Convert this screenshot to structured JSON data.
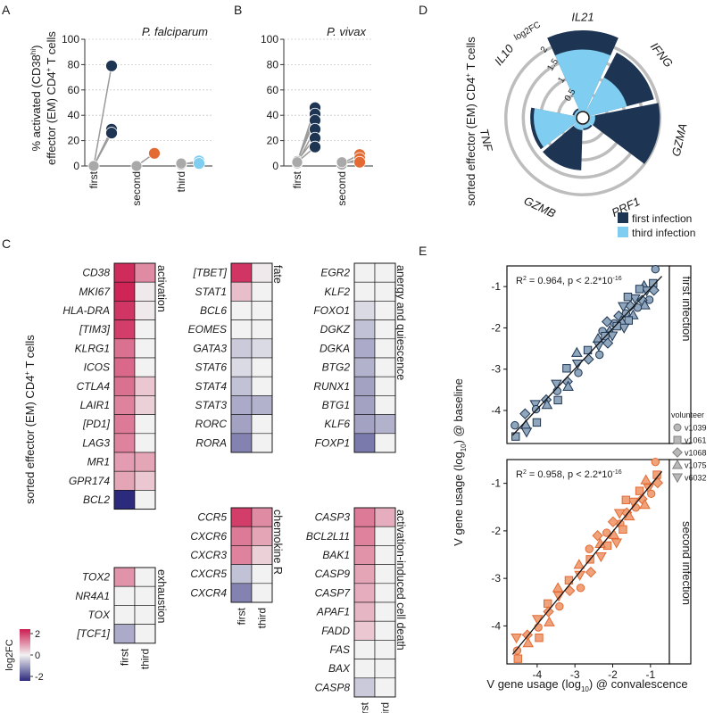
{
  "colors": {
    "navy": "#1d3553",
    "orange": "#e36a33",
    "lightblue": "#7fcdf0",
    "gray": "#a9a9a9",
    "ptFirst": "#8fa6bc",
    "ptSecond": "#f0a27b",
    "heat_pos": "#cc1b4f",
    "heat_neg": "#2c2a7d",
    "heat_mid": "#f2f2f2"
  },
  "panel_labels": {
    "a": "A",
    "b": "B",
    "c": "C",
    "d": "D",
    "e": "E"
  },
  "panelA": {
    "title": "P. falciparum",
    "ylabel_main": "% activated (CD38",
    "ylabel_sup": "hi",
    "ylabel_end": ")",
    "ylabel2_main": "effector (EM) CD4",
    "ylabel2_sup": "+",
    "ylabel2_end": " T cells",
    "yticks": [
      "0",
      "20",
      "40",
      "60",
      "80",
      "100"
    ],
    "xticks": [
      "first",
      "second",
      "third"
    ]
  },
  "panelB": {
    "title": "P. vivax",
    "yticks": [
      "0",
      "20",
      "40",
      "60",
      "80",
      "100"
    ],
    "xticks": [
      "first",
      "second"
    ]
  },
  "panelC": {
    "ylabel_main": "sorted effector (EM) CD4",
    "ylabel_sup": "+",
    "ylabel_end": " T cells",
    "col_labels": [
      "first",
      "third"
    ],
    "legend_title": "log2FC",
    "legend_ticks": [
      "2",
      "0",
      "-2"
    ],
    "groups": {
      "activation": {
        "title": "activation",
        "genes": [
          "CD38",
          "MKI67",
          "HLA-DRA",
          "[TIM3]",
          "KLRG1",
          "ICOS",
          "CTLA4",
          "LAIR1",
          "[PD1]",
          "LAG3",
          "MR1",
          "GPR174",
          "BCL2"
        ]
      },
      "exhaustion": {
        "title": "exhaustion",
        "genes": [
          "TOX2",
          "NR4A1",
          "TOX",
          "[TCF1]"
        ]
      },
      "fate": {
        "title": "fate",
        "genes": [
          "[TBET]",
          "STAT1",
          "BCL6",
          "EOMES",
          "GATA3",
          "STAT6",
          "STAT4",
          "STAT3",
          "RORC",
          "RORA"
        ]
      },
      "chemokine": {
        "title": "chemokine R",
        "genes": [
          "CCR5",
          "CXCR6",
          "CXCR3",
          "CXCR5",
          "CXCR4"
        ]
      },
      "anergy": {
        "title": "anergy and quiescence",
        "genes": [
          "EGR2",
          "KLF2",
          "FOXO1",
          "DGKZ",
          "DGKA",
          "BTG2",
          "RUNX1",
          "BTG1",
          "KLF6",
          "FOXP1"
        ]
      },
      "death": {
        "title": "activation-induced cell death",
        "genes": [
          "CASP3",
          "BCL2L11",
          "BAK1",
          "CASP9",
          "CASP7",
          "APAF1",
          "FADD",
          "FAS",
          "BAX",
          "CASP8"
        ]
      }
    }
  },
  "panelD": {
    "ylabel_main": "sorted effector (EM) CD4",
    "ylabel_sup": "+",
    "ylabel_end": " T cells",
    "axis_label": "log2FC",
    "ring_ticks": [
      "0.5",
      "1",
      "1.5",
      "2"
    ],
    "genes": [
      "IL21",
      "IFNG",
      "GZMA",
      "PRF1",
      "GZMB",
      "TNF",
      "IL10"
    ],
    "legend": [
      "first infection",
      "third infection"
    ]
  },
  "panelE": {
    "ylabel_main": "V gene usage (log",
    "ylabel_sub": "10",
    "ylabel_end": ") @ baseline",
    "xlabel_main": "V gene usage (log",
    "xlabel_sub": "10",
    "xlabel_end": ") @ convalescence",
    "top_stat_a": "R",
    "top_stat_sup": "2",
    "top_stat_b": " = 0.964, p < 2.2*10",
    "top_stat_exp": "-16",
    "bot_stat_a": "R",
    "bot_stat_sup": "2",
    "bot_stat_b": " = 0.958, p < 2.2*10",
    "bot_stat_exp": "-16",
    "top_strip": "first infection",
    "bot_strip": "second infection",
    "yticks": [
      "-1",
      "-2",
      "-3",
      "-4"
    ],
    "xticks": [
      "-4",
      "-3",
      "-2",
      "-1"
    ],
    "legend_title": "volunteer",
    "volunteers": [
      "v1039",
      "v1061",
      "v1068",
      "v1075",
      "v6032"
    ]
  },
  "chart_data": [
    {
      "type": "scatter",
      "title": "P. falciparum",
      "xlabel": "",
      "ylabel": "% activated (CD38hi) effector (EM) CD4+ T cells",
      "ylim": [
        0,
        100
      ],
      "categories": [
        "first",
        "second",
        "third"
      ],
      "pairs": [
        {
          "group": "first",
          "baseline": 0,
          "infected": 79
        },
        {
          "group": "first",
          "baseline": 0,
          "infected": 29
        },
        {
          "group": "first",
          "baseline": 0,
          "infected": 26
        },
        {
          "group": "second",
          "baseline": 0,
          "infected": 10
        },
        {
          "group": "third",
          "baseline": 1,
          "infected": 4
        },
        {
          "group": "third",
          "baseline": 2,
          "infected": 2
        }
      ]
    },
    {
      "type": "scatter",
      "title": "P. vivax",
      "ylim": [
        0,
        100
      ],
      "categories": [
        "first",
        "second"
      ],
      "pairs": [
        {
          "group": "first",
          "baseline": 3,
          "infected": 46
        },
        {
          "group": "first",
          "baseline": 3,
          "infected": 41
        },
        {
          "group": "first",
          "baseline": 4,
          "infected": 36
        },
        {
          "group": "first",
          "baseline": 2,
          "infected": 29
        },
        {
          "group": "first",
          "baseline": 4,
          "infected": 22
        },
        {
          "group": "first",
          "baseline": 3,
          "infected": 15
        },
        {
          "group": "second",
          "baseline": 2,
          "infected": 9
        },
        {
          "group": "second",
          "baseline": 1,
          "infected": 6
        },
        {
          "group": "second",
          "baseline": 3,
          "infected": 3
        }
      ]
    },
    {
      "type": "heatmap",
      "title": "log2FC",
      "columns": [
        "first",
        "third"
      ],
      "range": [
        -2.5,
        2.5
      ],
      "values": {
        "CD38": [
          2.3,
          1.2
        ],
        "MKI67": [
          2.4,
          0.1
        ],
        "HLA-DRA": [
          2.2,
          0.1
        ],
        "[TIM3]": [
          2.1,
          0.0
        ],
        "KLRG1": [
          1.5,
          0.0
        ],
        "ICOS": [
          1.6,
          0.0
        ],
        "CTLA4": [
          1.5,
          0.5
        ],
        "LAIR1": [
          1.3,
          0.4
        ],
        "[PD1]": [
          1.4,
          0.0
        ],
        "LAG3": [
          1.3,
          0.0
        ],
        "MR1": [
          1.0,
          0.9
        ],
        "GPR174": [
          0.9,
          0.5
        ],
        "BCL2": [
          -2.5,
          0.0
        ],
        "TOX2": [
          1.1,
          0.0
        ],
        "NR4A1": [
          0.0,
          0.0
        ],
        "TOX": [
          0.0,
          0.0
        ],
        "[TCF1]": [
          -0.9,
          0.0
        ],
        "[TBET]": [
          2.2,
          0.1
        ],
        "STAT1": [
          0.6,
          0.0
        ],
        "BCL6": [
          0.0,
          0.0
        ],
        "EOMES": [
          0.0,
          0.0
        ],
        "GATA3": [
          -0.5,
          -0.3
        ],
        "STAT6": [
          -0.3,
          0.0
        ],
        "STAT4": [
          -0.6,
          0.0
        ],
        "STAT3": [
          -0.9,
          -0.8
        ],
        "RORC": [
          -1.0,
          0.0
        ],
        "RORA": [
          -1.4,
          0.0
        ],
        "CCR5": [
          2.1,
          1.2
        ],
        "CXCR6": [
          1.4,
          0.9
        ],
        "CXCR3": [
          1.3,
          0.4
        ],
        "CXCR5": [
          -0.6,
          0.0
        ],
        "CXCR4": [
          -1.4,
          0.0
        ],
        "EGR2": [
          0.0,
          0.0
        ],
        "KLF2": [
          0.0,
          0.0
        ],
        "FOXO1": [
          -0.3,
          0.0
        ],
        "DGKZ": [
          -0.6,
          0.0
        ],
        "DGKA": [
          -0.9,
          0.0
        ],
        "BTG2": [
          -0.8,
          0.0
        ],
        "RUNX1": [
          -1.0,
          0.0
        ],
        "BTG1": [
          -1.0,
          0.0
        ],
        "KLF6": [
          -1.0,
          -0.8
        ],
        "FOXP1": [
          -1.5,
          0.0
        ],
        "CASP3": [
          1.4,
          0.8
        ],
        "BCL2L11": [
          1.3,
          0.0
        ],
        "BAK1": [
          1.1,
          0.0
        ],
        "CASP9": [
          0.9,
          0.0
        ],
        "CASP7": [
          0.8,
          0.0
        ],
        "APAF1": [
          0.7,
          0.0
        ],
        "FADD": [
          0.5,
          0.0
        ],
        "FAS": [
          0.0,
          0.0
        ],
        "BAX": [
          0.0,
          0.0
        ],
        "CASP8": [
          -0.5,
          0.0
        ]
      }
    },
    {
      "type": "bar",
      "subtype": "polar",
      "title": "log2FC",
      "categories": [
        "IL21",
        "IFNG",
        "GZMA",
        "PRF1",
        "GZMB",
        "TNF",
        "IL10"
      ],
      "ylim": [
        0,
        2.3
      ],
      "series": [
        {
          "name": "first infection",
          "values": [
            2.3,
            1.9,
            2.0,
            0.15,
            1.3,
            1.3,
            0.1
          ]
        },
        {
          "name": "third infection",
          "values": [
            1.75,
            1.1,
            0.15,
            0.1,
            0.15,
            1.2,
            0.05
          ]
        }
      ]
    },
    {
      "type": "scatter",
      "title": "first infection",
      "xlabel": "V gene usage (log10) @ convalescence",
      "ylabel": "V gene usage (log10) @ baseline",
      "xlim": [
        -4.8,
        -0.5
      ],
      "ylim": [
        -4.8,
        -0.5
      ],
      "annotation": "R2 = 0.964, p < 2.2*10-16",
      "fit_line": [
        [
          -4.65,
          -4.6
        ],
        [
          -0.7,
          -0.75
        ]
      ],
      "volunteers": [
        "v1039",
        "v1061",
        "v1068",
        "v1075",
        "v6032"
      ],
      "x": [
        -0.72,
        -0.9,
        -1.0,
        -1.05,
        -1.1,
        -1.15,
        -1.2,
        -1.25,
        -1.3,
        -1.35,
        -1.4,
        -1.45,
        -1.5,
        -1.55,
        -1.6,
        -1.65,
        -1.7,
        -1.75,
        -1.8,
        -1.85,
        -1.9,
        -1.95,
        -2.0,
        -2.05,
        -2.1,
        -2.15,
        -2.2,
        -2.25,
        -2.3,
        -2.4,
        -2.5,
        -2.6,
        -2.7,
        -2.8,
        -2.9,
        -3.0,
        -3.1,
        -3.2,
        -3.3,
        -3.4,
        -3.5,
        -3.6,
        -3.7,
        -3.8,
        -3.9,
        -4.0,
        -4.1,
        -4.2,
        -4.3,
        -4.4,
        -4.5,
        -4.6
      ],
      "y": [
        -0.73,
        -0.95,
        -1.0,
        -1.1,
        -1.1,
        -1.2,
        -1.15,
        -1.3,
        -1.3,
        -1.35,
        -1.45,
        -1.4,
        -1.5,
        -1.6,
        -1.6,
        -1.65,
        -1.7,
        -1.8,
        -1.8,
        -1.85,
        -1.95,
        -1.9,
        -2.0,
        -2.1,
        -2.1,
        -2.2,
        -2.2,
        -2.25,
        -2.35,
        -2.4,
        -2.5,
        -2.6,
        -2.7,
        -2.75,
        -2.9,
        -3.0,
        -3.1,
        -3.3,
        -3.3,
        -3.45,
        -3.5,
        -3.6,
        -3.8,
        -3.8,
        -4.0,
        -4.0,
        -4.2,
        -4.2,
        -4.35,
        -4.4,
        -4.45,
        -4.6
      ]
    },
    {
      "type": "scatter",
      "title": "second infection",
      "xlabel": "V gene usage (log10) @ convalescence",
      "ylabel": "V gene usage (log10) @ baseline",
      "xlim": [
        -4.8,
        -0.5
      ],
      "ylim": [
        -4.8,
        -0.5
      ],
      "annotation": "R2 = 0.958, p < 2.2*10-16",
      "fit_line": [
        [
          -4.65,
          -4.6
        ],
        [
          -0.7,
          -0.75
        ]
      ],
      "volunteers": [
        "v1039",
        "v1061",
        "v1068",
        "v1075",
        "v6032"
      ],
      "x": [
        -0.72,
        -0.8,
        -0.9,
        -1.0,
        -1.05,
        -1.1,
        -1.2,
        -1.25,
        -1.3,
        -1.4,
        -1.45,
        -1.5,
        -1.6,
        -1.65,
        -1.7,
        -1.8,
        -1.85,
        -1.9,
        -2.0,
        -2.05,
        -2.1,
        -2.2,
        -2.25,
        -2.3,
        -2.4,
        -2.5,
        -2.6,
        -2.7,
        -2.8,
        -2.9,
        -3.0,
        -3.1,
        -3.2,
        -3.3,
        -3.4,
        -3.5,
        -3.6,
        -3.7,
        -3.8,
        -3.9,
        -4.0,
        -4.1,
        -4.2,
        -4.3,
        -4.4,
        -4.5,
        -4.6
      ],
      "y": [
        -0.7,
        -0.85,
        -0.9,
        -1.05,
        -1.1,
        -1.1,
        -1.25,
        -1.3,
        -1.3,
        -1.45,
        -1.45,
        -1.5,
        -1.65,
        -1.6,
        -1.75,
        -1.85,
        -1.85,
        -1.9,
        -2.05,
        -2.1,
        -2.1,
        -2.25,
        -2.25,
        -2.3,
        -2.45,
        -2.5,
        -2.6,
        -2.75,
        -2.8,
        -2.9,
        -3.05,
        -3.1,
        -3.2,
        -3.35,
        -3.4,
        -3.5,
        -3.65,
        -3.7,
        -3.8,
        -3.95,
        -4.0,
        -4.1,
        -4.25,
        -4.3,
        -4.4,
        -4.55,
        -4.6
      ]
    }
  ]
}
